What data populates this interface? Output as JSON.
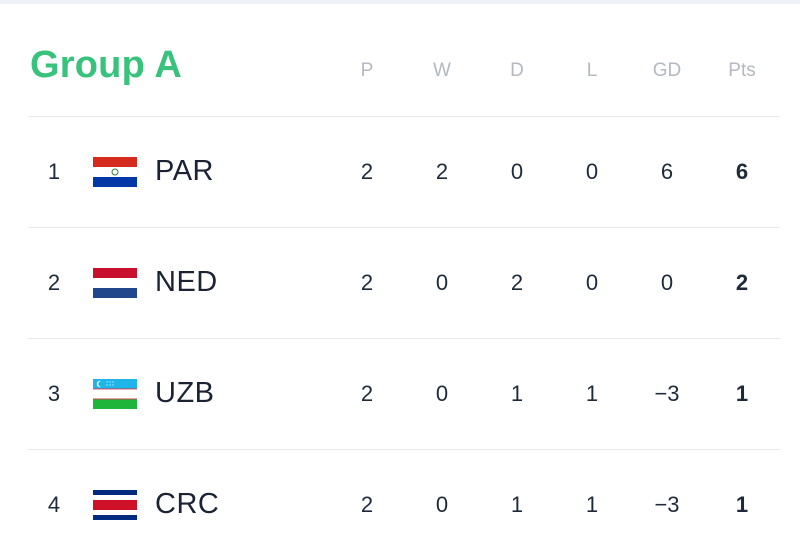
{
  "group": {
    "title": "Group A",
    "columns": [
      "P",
      "W",
      "D",
      "L",
      "GD",
      "Pts"
    ]
  },
  "standings": [
    {
      "rank": "1",
      "team": "PAR",
      "flag": "flag-paraguay-icon",
      "p": "2",
      "w": "2",
      "d": "0",
      "l": "0",
      "gd": "6",
      "pts": "6"
    },
    {
      "rank": "2",
      "team": "NED",
      "flag": "flag-netherlands-icon",
      "p": "2",
      "w": "0",
      "d": "2",
      "l": "0",
      "gd": "0",
      "pts": "2"
    },
    {
      "rank": "3",
      "team": "UZB",
      "flag": "flag-uzbekistan-icon",
      "p": "2",
      "w": "0",
      "d": "1",
      "l": "1",
      "gd": "-3",
      "pts": "1"
    },
    {
      "rank": "4",
      "team": "CRC",
      "flag": "flag-costa-rica-icon",
      "p": "2",
      "w": "0",
      "d": "1",
      "l": "1",
      "gd": "-3",
      "pts": "1"
    }
  ],
  "colors": {
    "accent": "#38c27c",
    "header_text": "#b4b9c1",
    "body_text": "#1e2a3a",
    "divider": "#e6e8ec"
  }
}
